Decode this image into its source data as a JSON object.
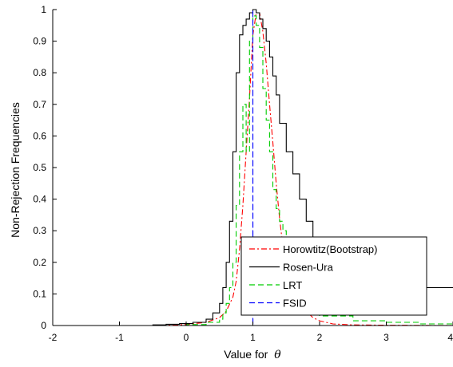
{
  "chart_data": {
    "type": "line",
    "xlabel": "Value for",
    "xlabel_symbol": "θ",
    "ylabel": "Non-Rejection Frequencies",
    "xlim": [
      -2,
      4
    ],
    "ylim": [
      0,
      1
    ],
    "x_ticks": [
      "-2",
      "-1",
      "0",
      "1",
      "2",
      "3",
      "4"
    ],
    "y_ticks": [
      "0",
      "0.1",
      "0.2",
      "0.3",
      "0.4",
      "0.5",
      "0.6",
      "0.7",
      "0.8",
      "0.9",
      "1"
    ],
    "legend_position": "bottom-right",
    "series": [
      {
        "name": "Horowtitz(Bootstrap)",
        "color": "#ff0000",
        "dash": "dashdot",
        "step": false,
        "x": [
          -2,
          -0.5,
          0,
          0.3,
          0.5,
          0.6,
          0.7,
          0.75,
          0.8,
          0.85,
          0.9,
          0.95,
          1.0,
          1.05,
          1.1,
          1.15,
          1.2,
          1.25,
          1.3,
          1.35,
          1.4,
          1.45,
          1.5,
          1.6,
          1.7,
          1.8,
          1.9,
          2.0,
          2.2,
          2.5,
          3.0,
          4.0
        ],
        "y": [
          0,
          0,
          0.003,
          0.01,
          0.025,
          0.045,
          0.09,
          0.14,
          0.24,
          0.38,
          0.55,
          0.72,
          0.92,
          0.99,
          0.99,
          0.93,
          0.83,
          0.7,
          0.58,
          0.45,
          0.34,
          0.25,
          0.18,
          0.11,
          0.07,
          0.045,
          0.025,
          0.015,
          0.005,
          0.002,
          0.001,
          0
        ]
      },
      {
        "name": "Rosen-Ura",
        "color": "#000000",
        "dash": "solid",
        "step": true,
        "x": [
          -2,
          -0.5,
          -0.3,
          -0.1,
          0.1,
          0.3,
          0.4,
          0.5,
          0.55,
          0.6,
          0.65,
          0.7,
          0.75,
          0.8,
          0.85,
          0.9,
          0.95,
          1.0,
          1.05,
          1.1,
          1.15,
          1.2,
          1.25,
          1.3,
          1.35,
          1.4,
          1.5,
          1.6,
          1.7,
          1.8,
          1.9,
          2.0,
          2.05,
          2.2,
          2.5,
          3.0,
          3.5,
          4.0
        ],
        "y": [
          0,
          0.002,
          0.004,
          0.006,
          0.01,
          0.02,
          0.04,
          0.07,
          0.12,
          0.2,
          0.33,
          0.55,
          0.8,
          0.92,
          0.95,
          0.97,
          0.99,
          1.0,
          0.99,
          0.97,
          0.94,
          0.9,
          0.85,
          0.79,
          0.73,
          0.64,
          0.55,
          0.48,
          0.4,
          0.33,
          0.26,
          0.2,
          0.16,
          0.14,
          0.13,
          0.12,
          0.12,
          0.12
        ]
      },
      {
        "name": "LRT",
        "color": "#00cc00",
        "dash": "dashed",
        "step": true,
        "x": [
          -2,
          0,
          0.3,
          0.5,
          0.55,
          0.6,
          0.65,
          0.7,
          0.75,
          0.8,
          0.85,
          0.9,
          0.95,
          1.0,
          1.05,
          1.1,
          1.15,
          1.2,
          1.25,
          1.3,
          1.35,
          1.4,
          1.45,
          1.5,
          1.6,
          1.7,
          1.8,
          2.0,
          2.5,
          3.0,
          3.5,
          4.0
        ],
        "y": [
          0,
          0.003,
          0.01,
          0.02,
          0.04,
          0.07,
          0.12,
          0.2,
          0.38,
          0.55,
          0.7,
          0.55,
          0.9,
          0.98,
          0.95,
          0.88,
          0.75,
          0.65,
          0.55,
          0.43,
          0.37,
          0.33,
          0.3,
          0.22,
          0.15,
          0.1,
          0.06,
          0.03,
          0.015,
          0.01,
          0.005,
          0.003
        ]
      },
      {
        "name": "FSID",
        "color": "#0000ff",
        "dash": "dashed",
        "step": false,
        "x": [
          -2,
          0.999,
          1.0,
          1.0,
          1.001,
          4.0
        ],
        "y": [
          0,
          0,
          0,
          1.0,
          0,
          0
        ]
      }
    ]
  }
}
